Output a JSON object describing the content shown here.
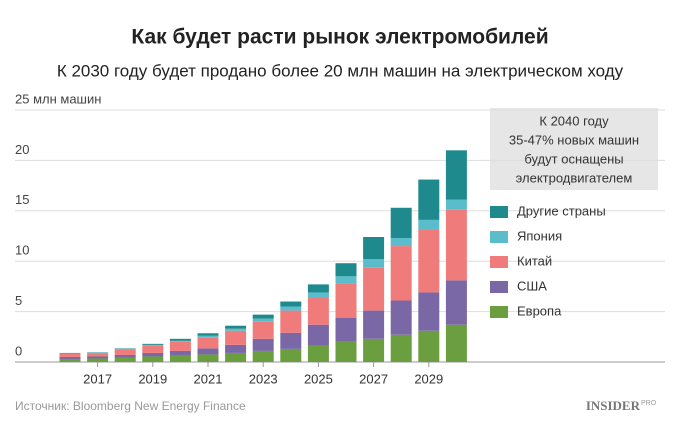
{
  "chart_data": {
    "type": "stacked_bar",
    "title": "Как будет расти рынок электромобилей",
    "subtitle": "К 2030 году будет продано более 20 млн машин на электрическом ходу",
    "categories": [
      null,
      "2017",
      null,
      "2019",
      null,
      "2021",
      null,
      "2023",
      null,
      "2025",
      null,
      "2027",
      null,
      "2029",
      null
    ],
    "series": [
      {
        "name": "Европа",
        "color": "#6a9e3f",
        "values": [
          0.3,
          0.35,
          0.45,
          0.55,
          0.65,
          0.75,
          0.9,
          1.1,
          1.3,
          1.6,
          2.0,
          2.3,
          2.7,
          3.1,
          3.7
        ]
      },
      {
        "name": "США",
        "color": "#7a68a6",
        "values": [
          0.2,
          0.2,
          0.25,
          0.35,
          0.45,
          0.6,
          0.8,
          1.2,
          1.6,
          2.1,
          2.4,
          2.8,
          3.4,
          3.8,
          4.4
        ]
      },
      {
        "name": "Китай",
        "color": "#f07b7b",
        "values": [
          0.3,
          0.3,
          0.55,
          0.7,
          0.9,
          1.1,
          1.4,
          1.7,
          2.2,
          2.7,
          3.4,
          4.3,
          5.4,
          6.2,
          7.0
        ]
      },
      {
        "name": "Япония",
        "color": "#5bbccc",
        "values": [
          0.05,
          0.05,
          0.05,
          0.1,
          0.1,
          0.15,
          0.2,
          0.3,
          0.4,
          0.5,
          0.7,
          0.8,
          0.8,
          1.0,
          1.0
        ]
      },
      {
        "name": "Другие страны",
        "color": "#1e8a8e",
        "values": [
          0.05,
          0.05,
          0.05,
          0.1,
          0.2,
          0.25,
          0.3,
          0.4,
          0.5,
          0.8,
          1.3,
          2.2,
          3.0,
          4.0,
          4.9
        ]
      }
    ],
    "ylim": [
      0,
      25
    ],
    "yticks": [
      0,
      5,
      10,
      15,
      20,
      {
        "value": 25,
        "label": "25 млн машин"
      }
    ],
    "grid": true,
    "annotation": [
      "К 2040 году",
      "35-47% новых машин",
      "будут оснащены",
      "электродвигателем"
    ],
    "source": "Источник: Bloomberg New Energy Finance",
    "logo": {
      "name": "INSIDER",
      "suffix": "PRO"
    }
  }
}
